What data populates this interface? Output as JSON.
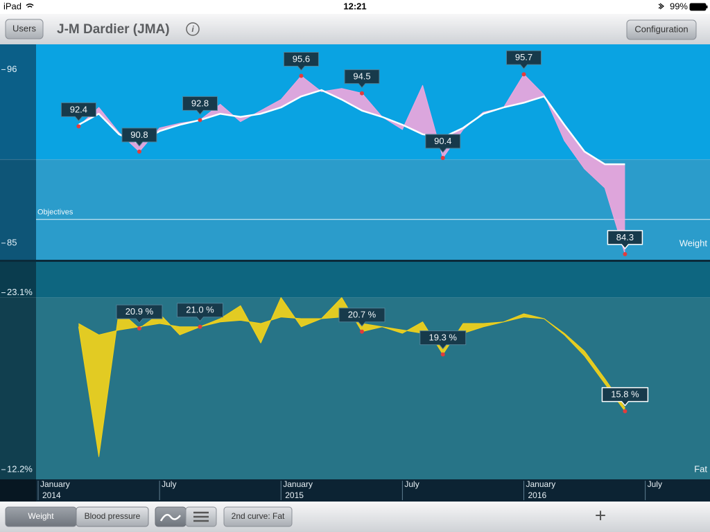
{
  "status_bar": {
    "carrier": "iPad",
    "time": "12:21",
    "battery": "99%"
  },
  "nav_bar": {
    "left_button": "Users",
    "title": "J-M Dardier (JMA)",
    "right_button": "Configuration"
  },
  "chart_data": [
    {
      "type": "line",
      "label": "Weight",
      "x": [
        "2014-03",
        "2014-04",
        "2014-05",
        "2014-06",
        "2014-07",
        "2014-08",
        "2014-09",
        "2014-10",
        "2014-11",
        "2014-12",
        "2015-01",
        "2015-02",
        "2015-03",
        "2015-04",
        "2015-05",
        "2015-06",
        "2015-07",
        "2015-08",
        "2015-09",
        "2015-10",
        "2015-11",
        "2015-12",
        "2016-01",
        "2016-02",
        "2016-03",
        "2016-04",
        "2016-05",
        "2016-06"
      ],
      "xlim": [
        "2014-01",
        "2016-09"
      ],
      "ylim": [
        83.9,
        97.6
      ],
      "yticks": [
        96,
        85
      ],
      "objective": {
        "label": "Objectives",
        "value": 86.5
      },
      "zone_limit": 90.3,
      "series": [
        {
          "color": "#eea6dc",
          "values": [
            92.4,
            93.6,
            92.0,
            90.8,
            92.3,
            92.6,
            92.8,
            93.8,
            92.7,
            93.4,
            94.1,
            95.6,
            94.6,
            94.8,
            94.5,
            93.0,
            92.2,
            95.0,
            90.4,
            92.2,
            93.3,
            93.6,
            95.7,
            94.4,
            91.5,
            89.7,
            88.5,
            84.3
          ],
          "value_labels": [
            "92.4",
            null,
            null,
            "90.8",
            null,
            null,
            "92.8",
            null,
            null,
            null,
            null,
            "95.6",
            null,
            null,
            "94.5",
            null,
            null,
            null,
            "90.4",
            null,
            null,
            null,
            "95.7",
            null,
            null,
            null,
            null,
            "84.3"
          ]
        },
        {
          "color": "#ffffff",
          "values": [
            92.5,
            93.2,
            91.9,
            91.3,
            92.1,
            92.5,
            92.8,
            93.2,
            93.0,
            93.2,
            93.6,
            94.3,
            94.7,
            94.1,
            93.4,
            93.0,
            92.5,
            91.9,
            91.7,
            92.3,
            93.2,
            93.6,
            93.9,
            94.3,
            92.5,
            90.8,
            90.0,
            90.0
          ]
        }
      ]
    },
    {
      "type": "line",
      "label": "Fat",
      "x": [
        "2014-03",
        "2014-04",
        "2014-05",
        "2014-06",
        "2014-07",
        "2014-08",
        "2014-09",
        "2014-10",
        "2014-11",
        "2014-12",
        "2015-01",
        "2015-02",
        "2015-03",
        "2015-04",
        "2015-05",
        "2015-06",
        "2015-07",
        "2015-08",
        "2015-09",
        "2015-10",
        "2015-11",
        "2015-12",
        "2016-01",
        "2016-02",
        "2016-03",
        "2016-04",
        "2016-05",
        "2016-06"
      ],
      "xlim": [
        "2014-01",
        "2016-09"
      ],
      "xticks": [
        {
          "value": "2014-01",
          "label": "January",
          "year": "2014"
        },
        {
          "value": "2014-07",
          "label": "July"
        },
        {
          "value": "2015-01",
          "label": "January",
          "year": "2015"
        },
        {
          "value": "2015-07",
          "label": "July"
        },
        {
          "value": "2016-01",
          "label": "January",
          "year": "2016"
        },
        {
          "value": "2016-07",
          "label": "July"
        }
      ],
      "ylim": [
        11.6,
        25.0
      ],
      "yticks": [
        {
          "value": 23.1,
          "label": "23.1%"
        },
        {
          "value": 12.2,
          "label": "12.2%"
        }
      ],
      "zone_limit": 22.8,
      "series": [
        {
          "color": "#f2d21a",
          "values": [
            21.0,
            13.0,
            22.0,
            20.9,
            21.8,
            20.5,
            21.0,
            21.5,
            22.3,
            20.0,
            22.8,
            21.0,
            21.5,
            22.8,
            20.7,
            21.0,
            20.6,
            21.3,
            19.3,
            21.2,
            21.2,
            21.3,
            21.8,
            21.5,
            20.5,
            19.2,
            17.5,
            15.8
          ],
          "value_labels": [
            null,
            null,
            null,
            "20.9 %",
            null,
            null,
            "21.0 %",
            null,
            null,
            null,
            null,
            null,
            null,
            null,
            "20.7 %",
            null,
            null,
            null,
            "19.3 %",
            null,
            null,
            null,
            null,
            null,
            null,
            null,
            null,
            "15.8 %"
          ]
        },
        {
          "color": "#f2d21a",
          "values": [
            21.2,
            20.5,
            20.8,
            21.0,
            21.2,
            21.0,
            21.0,
            21.3,
            21.4,
            21.2,
            21.6,
            21.5,
            21.5,
            21.6,
            21.2,
            21.0,
            20.8,
            20.6,
            20.0,
            20.6,
            21.0,
            21.3,
            21.6,
            21.5,
            20.6,
            19.5,
            17.8,
            16.0
          ]
        }
      ]
    }
  ],
  "toolbar": {
    "segments": [
      "Weight",
      "Blood pressure"
    ],
    "selected": 0,
    "second_curve": "2nd curve: Fat",
    "add": "+"
  }
}
